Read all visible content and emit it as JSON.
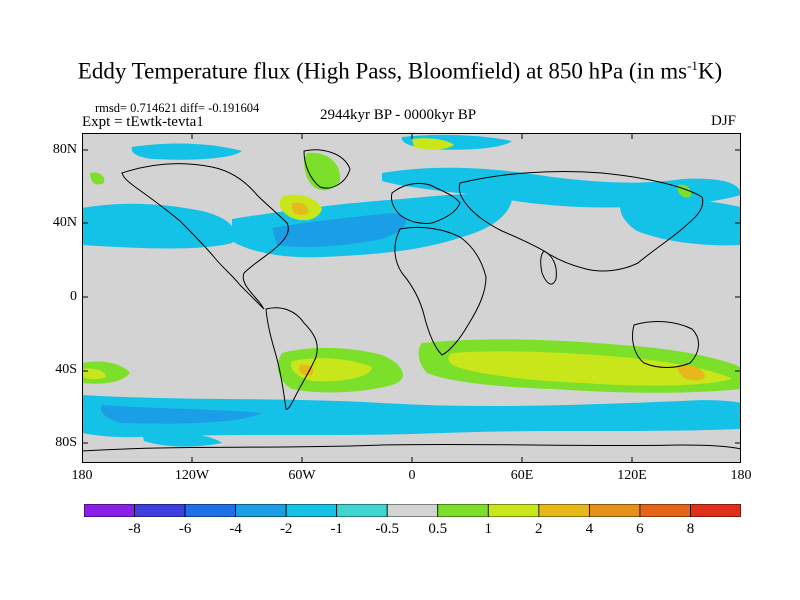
{
  "title": {
    "main": "Eddy Temperature flux (High Pass, Bloomfield) at 850 hPa (in ms",
    "unit_sup": "-1",
    "unit_end": "K)"
  },
  "stats": {
    "rmsd_line": "rmsd= 0.714621 diff= -0.191604"
  },
  "experiment": "Expt = tEwtk-tevta1",
  "period": "2944kyr BP - 0000kyr BP",
  "season": "DJF",
  "axes": {
    "lat_labels": [
      "80N",
      "40N",
      "0",
      "40S",
      "80S"
    ],
    "lon_labels": [
      "180",
      "120W",
      "60W",
      "0",
      "60E",
      "120E",
      "180"
    ]
  },
  "colorbar": {
    "labels": [
      "-8",
      "-6",
      "-4",
      "-2",
      "-1",
      "-0.5",
      "0.5",
      "1",
      "2",
      "4",
      "6",
      "8"
    ],
    "colors": [
      "#8a1ee8",
      "#3f3fe0",
      "#1f6fe8",
      "#1a9fe6",
      "#14c2e8",
      "#3fd6cf",
      "#d3d3d3",
      "#7ce02a",
      "#c8e61a",
      "#e6b81a",
      "#e6901a",
      "#e6641a",
      "#e0301a"
    ]
  },
  "colors": {
    "ocean_background": "#d3d3d3",
    "coastline": "#000000"
  }
}
